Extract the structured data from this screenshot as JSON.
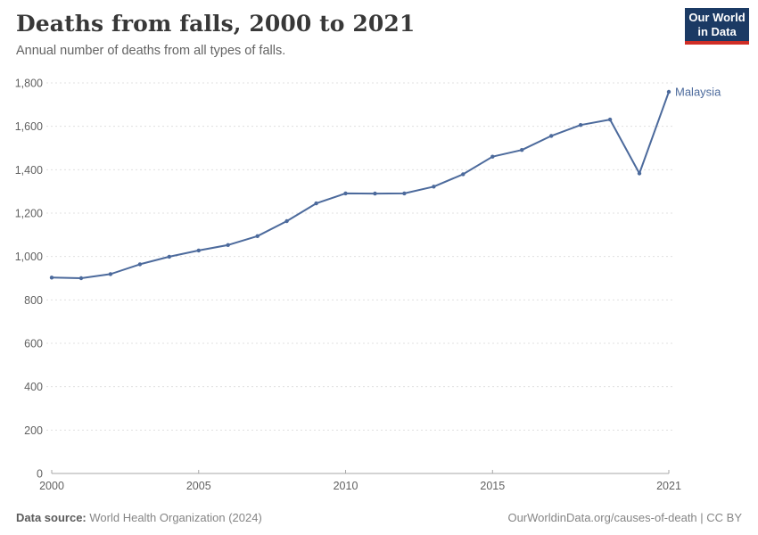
{
  "header": {
    "title": "Deaths from falls, 2000 to 2021",
    "subtitle": "Annual number of deaths from all types of falls.",
    "logo": {
      "line1": "Our World",
      "line2": "in Data",
      "bg_color": "#1b3a64",
      "bar_color": "#cf2e26"
    }
  },
  "chart_data": {
    "type": "line",
    "title": "Deaths from falls, 2000 to 2021",
    "subtitle": "Annual number of deaths from all types of falls.",
    "xlabel": "",
    "ylabel": "",
    "xlim": [
      2000,
      2021
    ],
    "ylim": [
      0,
      1800
    ],
    "grid": "horizontal-dashed",
    "legend_position": "end-of-line-label",
    "x": [
      2000,
      2001,
      2002,
      2003,
      2004,
      2005,
      2006,
      2007,
      2008,
      2009,
      2010,
      2011,
      2012,
      2013,
      2014,
      2015,
      2016,
      2017,
      2018,
      2019,
      2020,
      2021
    ],
    "xticks": [
      2000,
      2005,
      2010,
      2015,
      2021
    ],
    "ytick_values": [
      0,
      200,
      400,
      600,
      800,
      1000,
      1200,
      1400,
      1600,
      1800
    ],
    "ytick_labels": [
      "0",
      "200",
      "400",
      "600",
      "800",
      "1,000",
      "1,200",
      "1,400",
      "1,600",
      "1,800"
    ],
    "series": [
      {
        "name": "Malaysia",
        "color": "#4c6a9c",
        "values": [
          903,
          900,
          919,
          964,
          999,
          1028,
          1053,
          1094,
          1163,
          1245,
          1291,
          1290,
          1291,
          1322,
          1379,
          1460,
          1491,
          1556,
          1606,
          1631,
          1383,
          1759
        ]
      }
    ],
    "colors": {
      "line": "#4c6a9c",
      "grid": "#e0e0e0",
      "axis": "#a7a7a7",
      "tick_text": "#616161"
    }
  },
  "footer": {
    "source_label": "Data source:",
    "source_value": "World Health Organization (2024)",
    "credit": "OurWorldinData.org/causes-of-death | CC BY"
  }
}
